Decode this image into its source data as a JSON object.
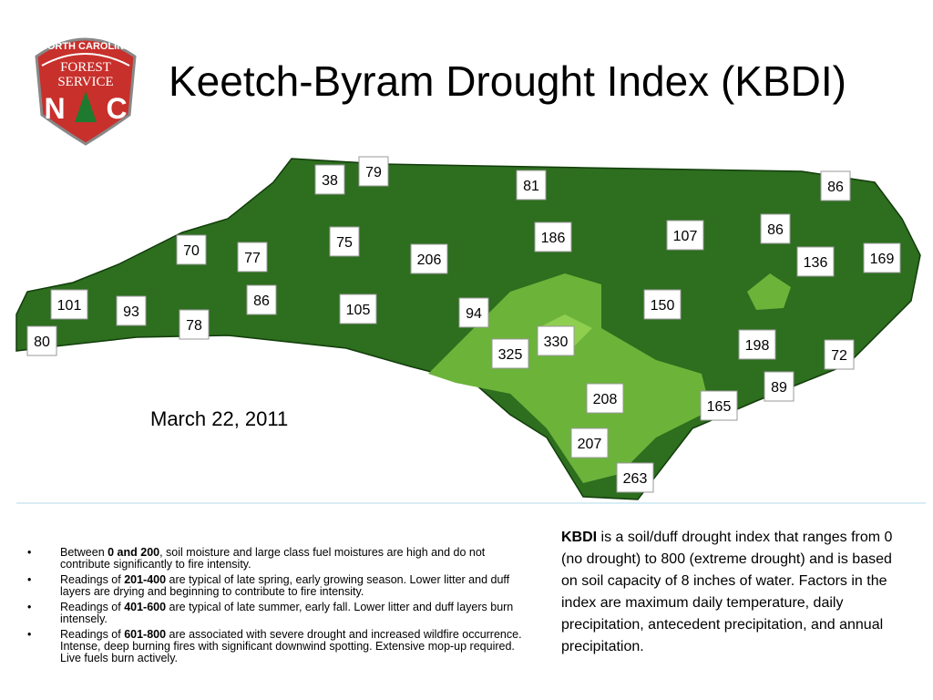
{
  "logo": {
    "arc": "NORTH CAROLINA",
    "line1": "FOREST",
    "line2": "SERVICE",
    "left": "N",
    "right": "C"
  },
  "title": "Keetch-Byram Drought Index (KBDI)",
  "map": {
    "date": "March 22, 2011",
    "labels": [
      38,
      79,
      81,
      86,
      70,
      77,
      75,
      206,
      186,
      107,
      86,
      136,
      169,
      101,
      93,
      86,
      78,
      105,
      94,
      150,
      80,
      325,
      330,
      198,
      72,
      89,
      208,
      165,
      207,
      263
    ]
  },
  "bullets": [
    [
      {
        "text": "Between "
      },
      {
        "text": "0 and 200",
        "bold": true
      },
      {
        "text": ", soil moisture and large class fuel moistures are high and do not contribute significantly to fire intensity."
      }
    ],
    [
      {
        "text": "Readings of "
      },
      {
        "text": "201-400",
        "bold": true
      },
      {
        "text": " are typical of late spring, early growing season. Lower litter and duff layers are drying and beginning to contribute to fire intensity."
      }
    ],
    [
      {
        "text": "Readings of "
      },
      {
        "text": "401-600",
        "bold": true
      },
      {
        "text": " are typical of late summer, early fall. Lower litter and duff layers burn intensely."
      }
    ],
    [
      {
        "text": "Readings of "
      },
      {
        "text": "601-800",
        "bold": true
      },
      {
        "text": " are associated with severe drought and increased wildfire occurrence. Intense, deep burning fires with significant downwind spotting. Extensive mop-up required. Live fuels burn actively."
      }
    ]
  ],
  "description": [
    {
      "text": "KBDI",
      "bold": true
    },
    {
      "text": " is a soil/duff drought index that ranges from 0 (no drought) to 800 (extreme drought) and is based on soil capacity of 8 inches of water. Factors in the index are maximum daily temperature, daily precipitation, antecedent precipitation, and annual precipitation."
    }
  ]
}
